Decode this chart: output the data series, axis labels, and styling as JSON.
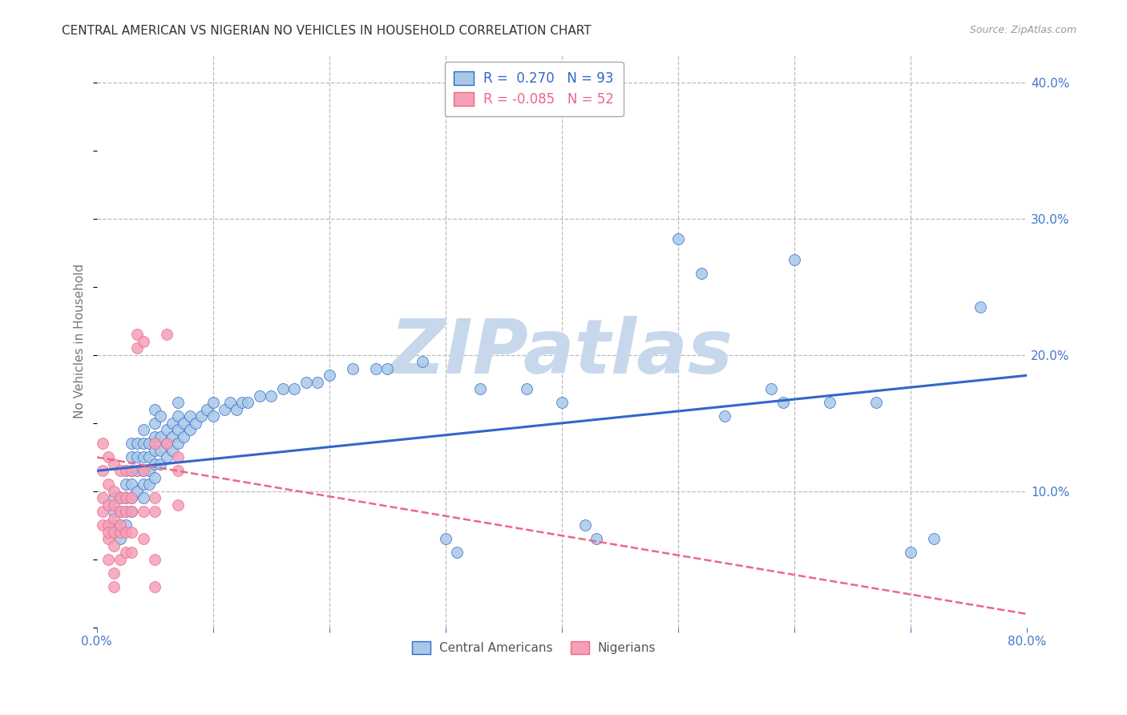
{
  "title": "CENTRAL AMERICAN VS NIGERIAN NO VEHICLES IN HOUSEHOLD CORRELATION CHART",
  "source": "Source: ZipAtlas.com",
  "xlim": [
    0.0,
    0.8
  ],
  "ylim": [
    0.0,
    0.42
  ],
  "ylabel": "No Vehicles in Household",
  "blue_color": "#A8C8E8",
  "pink_color": "#F4A0B8",
  "line_blue": "#3366CC",
  "line_pink": "#EE6688",
  "legend_r_blue": "0.270",
  "legend_n_blue": "93",
  "legend_r_pink": "-0.085",
  "legend_n_pink": "52",
  "blue_scatter": [
    [
      0.015,
      0.075
    ],
    [
      0.015,
      0.085
    ],
    [
      0.015,
      0.095
    ],
    [
      0.02,
      0.065
    ],
    [
      0.02,
      0.075
    ],
    [
      0.02,
      0.085
    ],
    [
      0.02,
      0.095
    ],
    [
      0.025,
      0.075
    ],
    [
      0.025,
      0.085
    ],
    [
      0.025,
      0.095
    ],
    [
      0.025,
      0.105
    ],
    [
      0.025,
      0.115
    ],
    [
      0.03,
      0.085
    ],
    [
      0.03,
      0.095
    ],
    [
      0.03,
      0.105
    ],
    [
      0.03,
      0.115
    ],
    [
      0.03,
      0.125
    ],
    [
      0.03,
      0.135
    ],
    [
      0.035,
      0.1
    ],
    [
      0.035,
      0.115
    ],
    [
      0.035,
      0.125
    ],
    [
      0.035,
      0.135
    ],
    [
      0.04,
      0.095
    ],
    [
      0.04,
      0.105
    ],
    [
      0.04,
      0.115
    ],
    [
      0.04,
      0.125
    ],
    [
      0.04,
      0.135
    ],
    [
      0.04,
      0.145
    ],
    [
      0.045,
      0.105
    ],
    [
      0.045,
      0.115
    ],
    [
      0.045,
      0.125
    ],
    [
      0.045,
      0.135
    ],
    [
      0.05,
      0.11
    ],
    [
      0.05,
      0.12
    ],
    [
      0.05,
      0.13
    ],
    [
      0.05,
      0.14
    ],
    [
      0.05,
      0.15
    ],
    [
      0.05,
      0.16
    ],
    [
      0.055,
      0.12
    ],
    [
      0.055,
      0.13
    ],
    [
      0.055,
      0.14
    ],
    [
      0.055,
      0.155
    ],
    [
      0.06,
      0.125
    ],
    [
      0.06,
      0.135
    ],
    [
      0.06,
      0.145
    ],
    [
      0.065,
      0.13
    ],
    [
      0.065,
      0.14
    ],
    [
      0.065,
      0.15
    ],
    [
      0.07,
      0.135
    ],
    [
      0.07,
      0.145
    ],
    [
      0.07,
      0.155
    ],
    [
      0.07,
      0.165
    ],
    [
      0.075,
      0.14
    ],
    [
      0.075,
      0.15
    ],
    [
      0.08,
      0.145
    ],
    [
      0.08,
      0.155
    ],
    [
      0.085,
      0.15
    ],
    [
      0.09,
      0.155
    ],
    [
      0.095,
      0.16
    ],
    [
      0.1,
      0.155
    ],
    [
      0.1,
      0.165
    ],
    [
      0.11,
      0.16
    ],
    [
      0.115,
      0.165
    ],
    [
      0.12,
      0.16
    ],
    [
      0.125,
      0.165
    ],
    [
      0.13,
      0.165
    ],
    [
      0.14,
      0.17
    ],
    [
      0.15,
      0.17
    ],
    [
      0.16,
      0.175
    ],
    [
      0.17,
      0.175
    ],
    [
      0.18,
      0.18
    ],
    [
      0.19,
      0.18
    ],
    [
      0.2,
      0.185
    ],
    [
      0.22,
      0.19
    ],
    [
      0.24,
      0.19
    ],
    [
      0.25,
      0.19
    ],
    [
      0.28,
      0.195
    ],
    [
      0.3,
      0.065
    ],
    [
      0.31,
      0.055
    ],
    [
      0.33,
      0.175
    ],
    [
      0.37,
      0.175
    ],
    [
      0.4,
      0.165
    ],
    [
      0.42,
      0.075
    ],
    [
      0.43,
      0.065
    ],
    [
      0.5,
      0.285
    ],
    [
      0.52,
      0.26
    ],
    [
      0.54,
      0.155
    ],
    [
      0.58,
      0.175
    ],
    [
      0.59,
      0.165
    ],
    [
      0.6,
      0.27
    ],
    [
      0.63,
      0.165
    ],
    [
      0.67,
      0.165
    ],
    [
      0.7,
      0.055
    ],
    [
      0.72,
      0.065
    ],
    [
      0.76,
      0.235
    ]
  ],
  "pink_scatter": [
    [
      0.005,
      0.135
    ],
    [
      0.005,
      0.115
    ],
    [
      0.005,
      0.095
    ],
    [
      0.005,
      0.085
    ],
    [
      0.005,
      0.075
    ],
    [
      0.01,
      0.125
    ],
    [
      0.01,
      0.105
    ],
    [
      0.01,
      0.09
    ],
    [
      0.01,
      0.075
    ],
    [
      0.01,
      0.065
    ],
    [
      0.01,
      0.05
    ],
    [
      0.01,
      0.07
    ],
    [
      0.015,
      0.12
    ],
    [
      0.015,
      0.1
    ],
    [
      0.015,
      0.09
    ],
    [
      0.015,
      0.08
    ],
    [
      0.015,
      0.07
    ],
    [
      0.015,
      0.06
    ],
    [
      0.015,
      0.04
    ],
    [
      0.015,
      0.03
    ],
    [
      0.02,
      0.115
    ],
    [
      0.02,
      0.095
    ],
    [
      0.02,
      0.085
    ],
    [
      0.02,
      0.07
    ],
    [
      0.02,
      0.075
    ],
    [
      0.02,
      0.05
    ],
    [
      0.025,
      0.115
    ],
    [
      0.025,
      0.095
    ],
    [
      0.025,
      0.085
    ],
    [
      0.025,
      0.07
    ],
    [
      0.025,
      0.055
    ],
    [
      0.03,
      0.115
    ],
    [
      0.03,
      0.095
    ],
    [
      0.03,
      0.085
    ],
    [
      0.03,
      0.07
    ],
    [
      0.03,
      0.055
    ],
    [
      0.035,
      0.215
    ],
    [
      0.035,
      0.205
    ],
    [
      0.04,
      0.21
    ],
    [
      0.04,
      0.115
    ],
    [
      0.04,
      0.085
    ],
    [
      0.04,
      0.065
    ],
    [
      0.05,
      0.135
    ],
    [
      0.05,
      0.095
    ],
    [
      0.05,
      0.085
    ],
    [
      0.05,
      0.05
    ],
    [
      0.05,
      0.03
    ],
    [
      0.06,
      0.215
    ],
    [
      0.06,
      0.135
    ],
    [
      0.07,
      0.125
    ],
    [
      0.07,
      0.115
    ],
    [
      0.07,
      0.09
    ]
  ],
  "blue_line_x": [
    0.0,
    0.8
  ],
  "blue_line_y": [
    0.115,
    0.185
  ],
  "pink_line_x": [
    0.0,
    0.8
  ],
  "pink_line_y": [
    0.125,
    0.01
  ],
  "watermark": "ZIPatlas",
  "watermark_color": "#C8D8EC",
  "background_color": "#FFFFFF",
  "grid_color": "#BBBBBB",
  "tick_color_right": "#4477CC",
  "tick_color_bottom": "#4477CC",
  "tick_color_ylabel": "#777777"
}
